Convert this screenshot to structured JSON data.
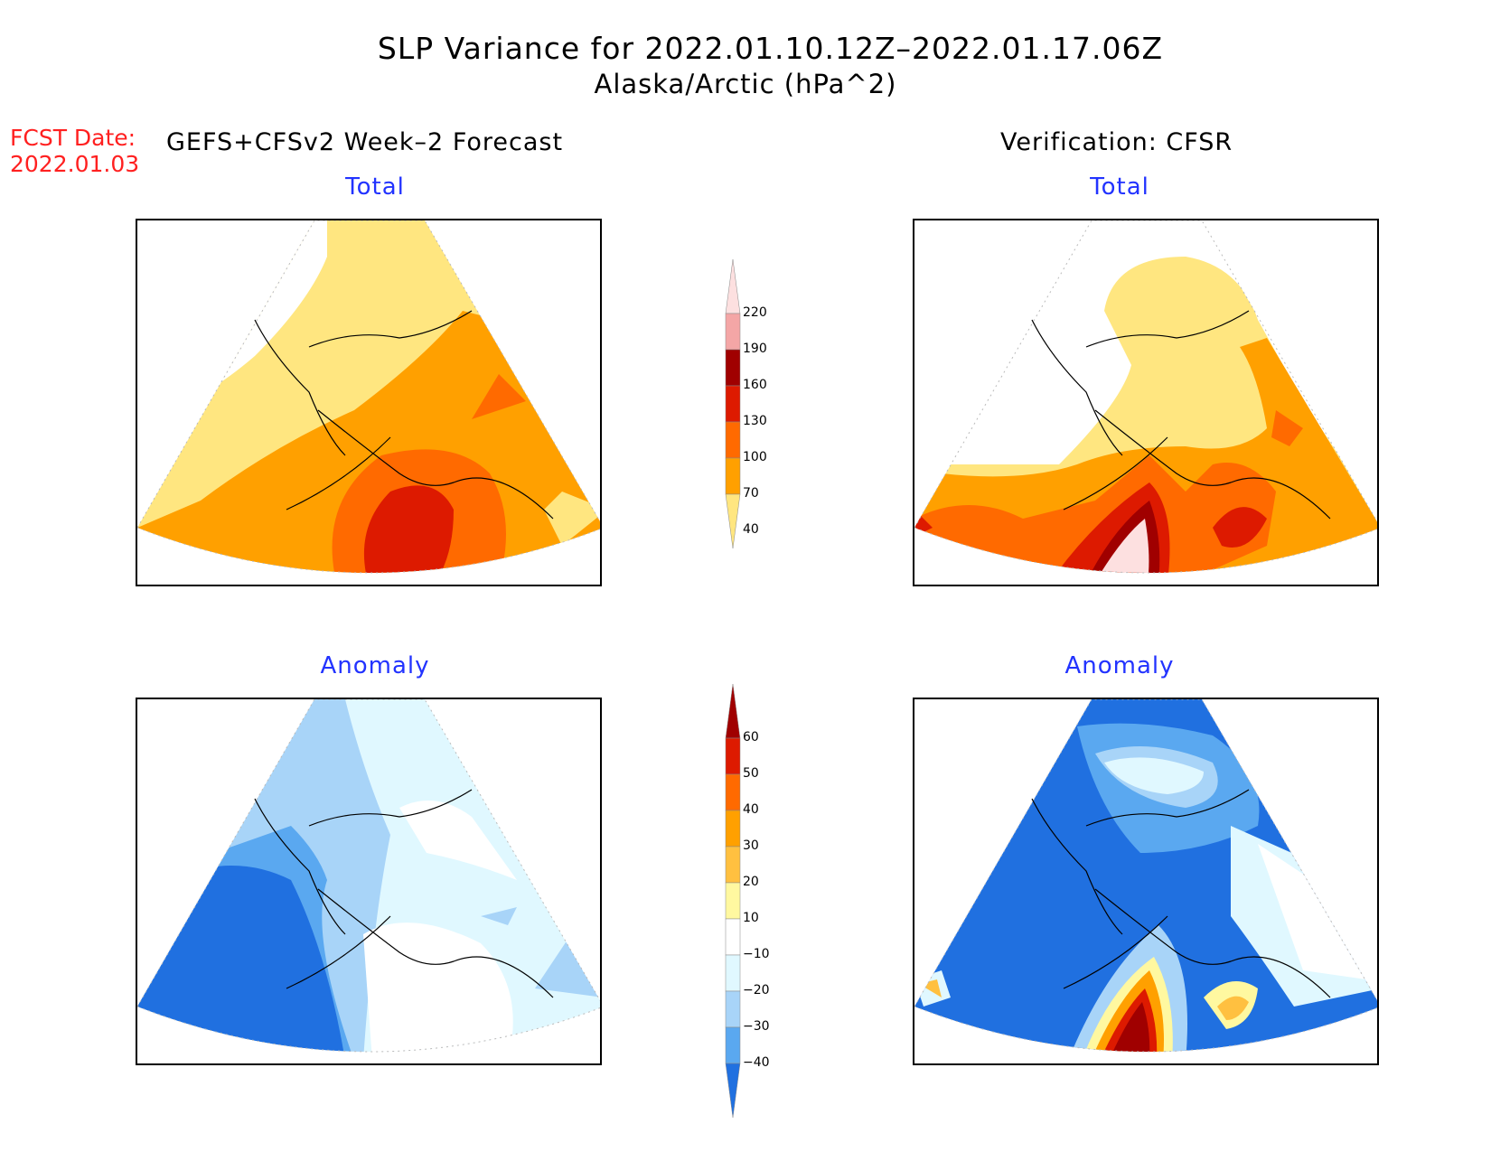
{
  "header": {
    "title": "SLP Variance for 2022.01.10.12Z–2022.01.17.06Z",
    "subtitle": "Alaska/Arctic (hPa^2)",
    "fcst_label": "FCST Date:",
    "fcst_date": "2022.01.03",
    "left_heading": "GEFS+CFSv2 Week–2 Forecast",
    "right_heading": "Verification: CFSR"
  },
  "panels": {
    "forecast_total_title": "Total",
    "forecast_anomaly_title": "Anomaly",
    "verification_total_title": "Total",
    "verification_anomaly_title": "Anomaly"
  },
  "total_colorbar": {
    "levels": [
      "220",
      "190",
      "160",
      "130",
      "100",
      "70",
      "40"
    ],
    "colors": [
      "#fde0e0",
      "#f4a6a6",
      "#a00000",
      "#dd1a00",
      "#ff6a00",
      "#ffa000",
      "#ffe680"
    ]
  },
  "anomaly_colorbar": {
    "levels": [
      "60",
      "50",
      "40",
      "30",
      "20",
      "10",
      "−10",
      "−20",
      "−30",
      "−40"
    ],
    "colors": [
      "#a00000",
      "#dd1a00",
      "#ff6a00",
      "#ffa000",
      "#ffc040",
      "#fff8a0",
      "#ffffff",
      "#e0f8ff",
      "#a8d4f8",
      "#5aa8f0",
      "#2070e0"
    ]
  }
}
